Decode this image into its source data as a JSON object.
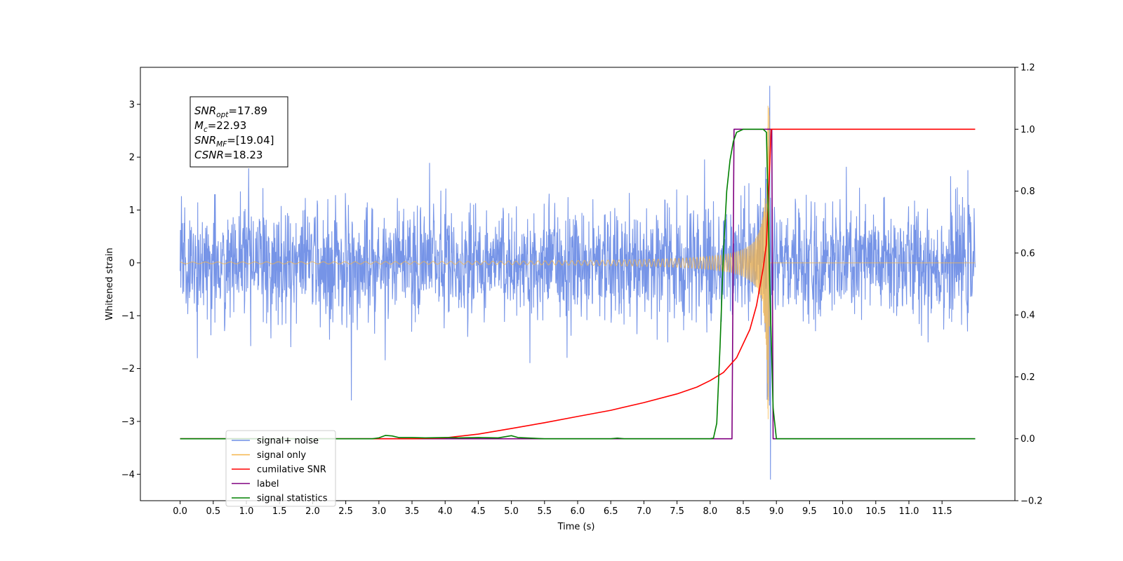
{
  "chart_data": {
    "type": "line",
    "xlabel": "Time (s)",
    "ylabel": "Whitened strain",
    "xlim": [
      -0.6,
      12.6
    ],
    "ylim_left": [
      -4.5,
      3.7
    ],
    "ylim_right": [
      -0.2,
      1.2
    ],
    "x_ticks": [
      "0.0",
      "0.5",
      "1.0",
      "1.5",
      "2.0",
      "2.5",
      "3.0",
      "3.5",
      "4.0",
      "4.5",
      "5.0",
      "5.5",
      "6.0",
      "6.5",
      "7.0",
      "7.5",
      "8.0",
      "8.5",
      "9.0",
      "9.5",
      "10.0",
      "10.5",
      "11.0",
      "11.5"
    ],
    "y_left_ticks": [
      "−4",
      "−3",
      "−2",
      "−1",
      "0",
      "1",
      "2",
      "3"
    ],
    "y_right_ticks": [
      "−0.2",
      "0.0",
      "0.2",
      "0.4",
      "0.6",
      "0.8",
      "1.0",
      "1.2"
    ],
    "annotations": [
      {
        "pre": "SNR",
        "sub": "opt",
        "post": "=17.89"
      },
      {
        "pre": "M",
        "sub": "c",
        "post": "=22.93"
      },
      {
        "pre": "SNR",
        "sub": "MF",
        "post": "=[19.04]"
      },
      {
        "pre": "CSNR",
        "sub": "",
        "post": "=18.23"
      }
    ],
    "legend": {
      "placement": "lower-left",
      "entries": [
        {
          "label": "signal+ noise",
          "color": "#6f8ee6"
        },
        {
          "label": "signal only",
          "color": "#f5b64a"
        },
        {
          "label": "cumilative SNR",
          "color": "#ff0000"
        },
        {
          "label": "label",
          "color": "#800080"
        },
        {
          "label": "signal statistics",
          "color": "#008000"
        }
      ]
    },
    "series": [
      {
        "name": "signal+ noise",
        "axis": "left",
        "color": "#6f8ee6",
        "x_range": [
          0.0,
          12.0
        ],
        "noise_std": 0.55,
        "merger_time": 8.9,
        "merger_peak": 3.35,
        "min_value": -4.1
      },
      {
        "name": "signal only",
        "axis": "left",
        "color": "#f5b64a",
        "x_range": [
          0.0,
          12.0
        ],
        "merger_time": 8.9,
        "merger_peak": 3.1
      },
      {
        "name": "cumilative SNR",
        "axis": "right",
        "x": [
          0.0,
          3.5,
          4.0,
          4.5,
          5.0,
          5.5,
          6.0,
          6.5,
          7.0,
          7.5,
          7.8,
          8.0,
          8.2,
          8.4,
          8.6,
          8.7,
          8.8,
          8.85,
          8.9,
          8.92,
          9.0,
          12.0
        ],
        "y": [
          0.0,
          0.0,
          0.003,
          0.015,
          0.033,
          0.052,
          0.072,
          0.092,
          0.117,
          0.145,
          0.167,
          0.188,
          0.214,
          0.262,
          0.353,
          0.431,
          0.55,
          0.63,
          0.88,
          1.0,
          1.0,
          1.0
        ]
      },
      {
        "name": "label",
        "axis": "right",
        "x": [
          0.0,
          8.33,
          8.36,
          8.93,
          8.95,
          12.0
        ],
        "y": [
          0.0,
          0.0,
          1.0,
          1.0,
          0.0,
          0.0
        ]
      },
      {
        "name": "signal statistics",
        "axis": "right",
        "x": [
          0.0,
          2.9,
          3.0,
          3.1,
          3.2,
          3.3,
          3.5,
          3.7,
          4.0,
          4.2,
          4.5,
          4.8,
          5.0,
          5.1,
          5.3,
          5.5,
          6.0,
          6.5,
          6.6,
          6.7,
          8.0,
          8.05,
          8.1,
          8.15,
          8.2,
          8.25,
          8.3,
          8.35,
          8.4,
          8.45,
          8.5,
          8.6,
          8.7,
          8.8,
          8.85,
          8.9,
          8.95,
          9.0,
          12.0
        ],
        "y": [
          0.0,
          0.0,
          0.003,
          0.011,
          0.009,
          0.004,
          0.004,
          0.003,
          0.004,
          0.003,
          0.004,
          0.003,
          0.01,
          0.004,
          0.002,
          0.0,
          0.0,
          0.0,
          0.002,
          0.0,
          0.0,
          0.002,
          0.05,
          0.3,
          0.6,
          0.8,
          0.9,
          0.96,
          0.99,
          0.995,
          1.0,
          1.0,
          1.0,
          1.0,
          0.99,
          0.5,
          0.1,
          0.0,
          0.0
        ]
      }
    ]
  }
}
